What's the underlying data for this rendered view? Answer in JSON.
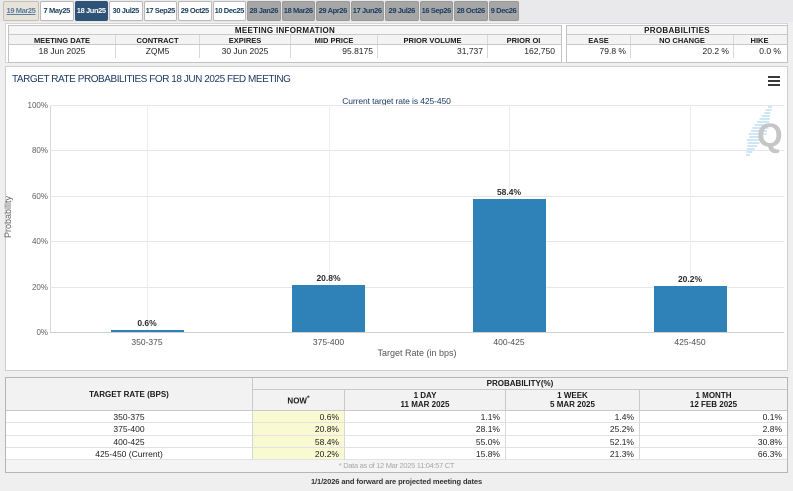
{
  "tabs": [
    {
      "label": "19 Mar25",
      "state": "past"
    },
    {
      "label": "7 May25",
      "state": "default"
    },
    {
      "label": "18 Jun25",
      "state": "selected"
    },
    {
      "label": "30 Jul25",
      "state": "default"
    },
    {
      "label": "17 Sep25",
      "state": "default"
    },
    {
      "label": "29 Oct25",
      "state": "default"
    },
    {
      "label": "10 Dec25",
      "state": "default"
    },
    {
      "label": "28 Jan26",
      "state": "next-year"
    },
    {
      "label": "18 Mar26",
      "state": "next-year"
    },
    {
      "label": "29 Apr26",
      "state": "next-year"
    },
    {
      "label": "17 Jun26",
      "state": "next-year"
    },
    {
      "label": "29 Jul26",
      "state": "next-year"
    },
    {
      "label": "16 Sep26",
      "state": "next-year"
    },
    {
      "label": "28 Oct26",
      "state": "next-year"
    },
    {
      "label": "9 Dec26",
      "state": "next-year"
    }
  ],
  "meeting_information": {
    "title": "MEETING INFORMATION",
    "columns": [
      "MEETING DATE",
      "CONTRACT",
      "EXPIRES",
      "MID PRICE",
      "PRIOR VOLUME",
      "PRIOR OI"
    ],
    "values": [
      "18 Jun 2025",
      "ZQM5",
      "30 Jun 2025",
      "95.8175",
      "31,737",
      "162,750"
    ]
  },
  "probabilities_summary": {
    "title": "PROBABILITIES",
    "columns": [
      "EASE",
      "NO CHANGE",
      "HIKE"
    ],
    "values": [
      "79.8 %",
      "20.2 %",
      "0.0 %"
    ]
  },
  "chart_data": {
    "type": "bar",
    "title": "TARGET RATE PROBABILITIES FOR 18 JUN 2025 FED MEETING",
    "subtitle": "Current target rate is 425-450",
    "categories": [
      "350-375",
      "375-400",
      "400-425",
      "425-450"
    ],
    "values": [
      0.6,
      20.8,
      58.4,
      20.2
    ],
    "data_labels": [
      "0.6%",
      "20.8%",
      "58.4%",
      "20.2%"
    ],
    "xlabel": "Target Rate (in bps)",
    "ylabel": "Probability",
    "ylim": [
      0,
      100
    ],
    "ytick_labels": [
      "0%",
      "20%",
      "40%",
      "60%",
      "80%",
      "100%"
    ],
    "grid": true,
    "legend": false,
    "bar_color": "#2e82b8"
  },
  "probability_table": {
    "rate_header": "TARGET RATE (BPS)",
    "group_header": "PROBABILITY(%)",
    "col_headers": [
      {
        "line1": "NOW",
        "sup": "*",
        "line2": ""
      },
      {
        "line1": "1 DAY",
        "line2": "11 MAR 2025"
      },
      {
        "line1": "1 WEEK",
        "line2": "5 MAR 2025"
      },
      {
        "line1": "1 MONTH",
        "line2": "12 FEB 2025"
      }
    ],
    "rows": [
      {
        "rate": "350-375",
        "now": "0.6%",
        "day": "1.1%",
        "week": "1.4%",
        "month": "0.1%"
      },
      {
        "rate": "375-400",
        "now": "20.8%",
        "day": "28.1%",
        "week": "25.2%",
        "month": "2.8%"
      },
      {
        "rate": "400-425",
        "now": "58.4%",
        "day": "55.0%",
        "week": "52.1%",
        "month": "30.8%"
      },
      {
        "rate": "425-450 (Current)",
        "now": "20.2%",
        "day": "15.8%",
        "week": "21.3%",
        "month": "66.3%"
      }
    ],
    "footnote": "* Data as of 12 Mar 2025 11:04:57 CT"
  },
  "projected_note": "1/1/2026 and forward are projected meeting dates",
  "colors": {
    "bar": "#2e82b8",
    "selected_tab": "#2e5377",
    "now_column": "#fafad2",
    "title_navy": "#1c3b63"
  }
}
